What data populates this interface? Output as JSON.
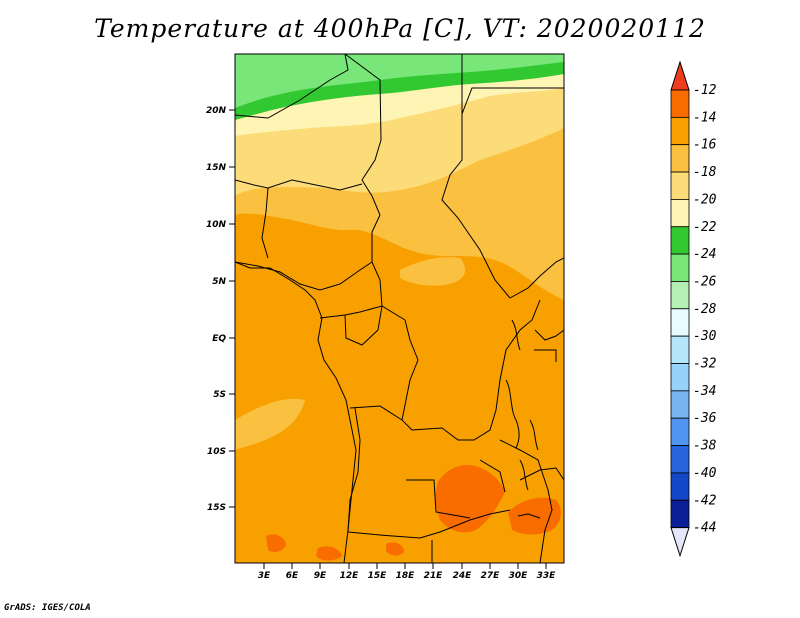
{
  "title": "Temperature at 400hPa [C], VT: 2020020112",
  "credit": "GrADS: IGES/COLA",
  "map": {
    "lat_labels": [
      "20N",
      "15N",
      "10N",
      "5N",
      "EQ",
      "5S",
      "10S",
      "15S"
    ],
    "lon_labels": [
      "3E",
      "6E",
      "9E",
      "12E",
      "15E",
      "18E",
      "21E",
      "24E",
      "27E",
      "30E",
      "33E"
    ]
  },
  "colorbar": {
    "labels": [
      "-12",
      "-14",
      "-16",
      "-18",
      "-20",
      "-22",
      "-24",
      "-26",
      "-28",
      "-30",
      "-32",
      "-34",
      "-36",
      "-38",
      "-40",
      "-42",
      "-44"
    ],
    "colors": [
      "#f03c1e",
      "#f86c00",
      "#f8a000",
      "#fac040",
      "#fcdc78",
      "#fef4b4",
      "#32c832",
      "#78e678",
      "#b4f0b4",
      "#e6fcff",
      "#b4e6fa",
      "#96d2fa",
      "#78b4f0",
      "#5096f0",
      "#2864dc",
      "#1446c8",
      "#0a1e96",
      "#e6e6fa"
    ]
  },
  "regions": {
    "lt22": "#fef4b4",
    "lt20": "#fcdc78",
    "lt18": "#fac040",
    "lt16": "#f8a000",
    "lt14": "#f86c00",
    "lt24": "#32c832",
    "lt26": "#78e678"
  }
}
